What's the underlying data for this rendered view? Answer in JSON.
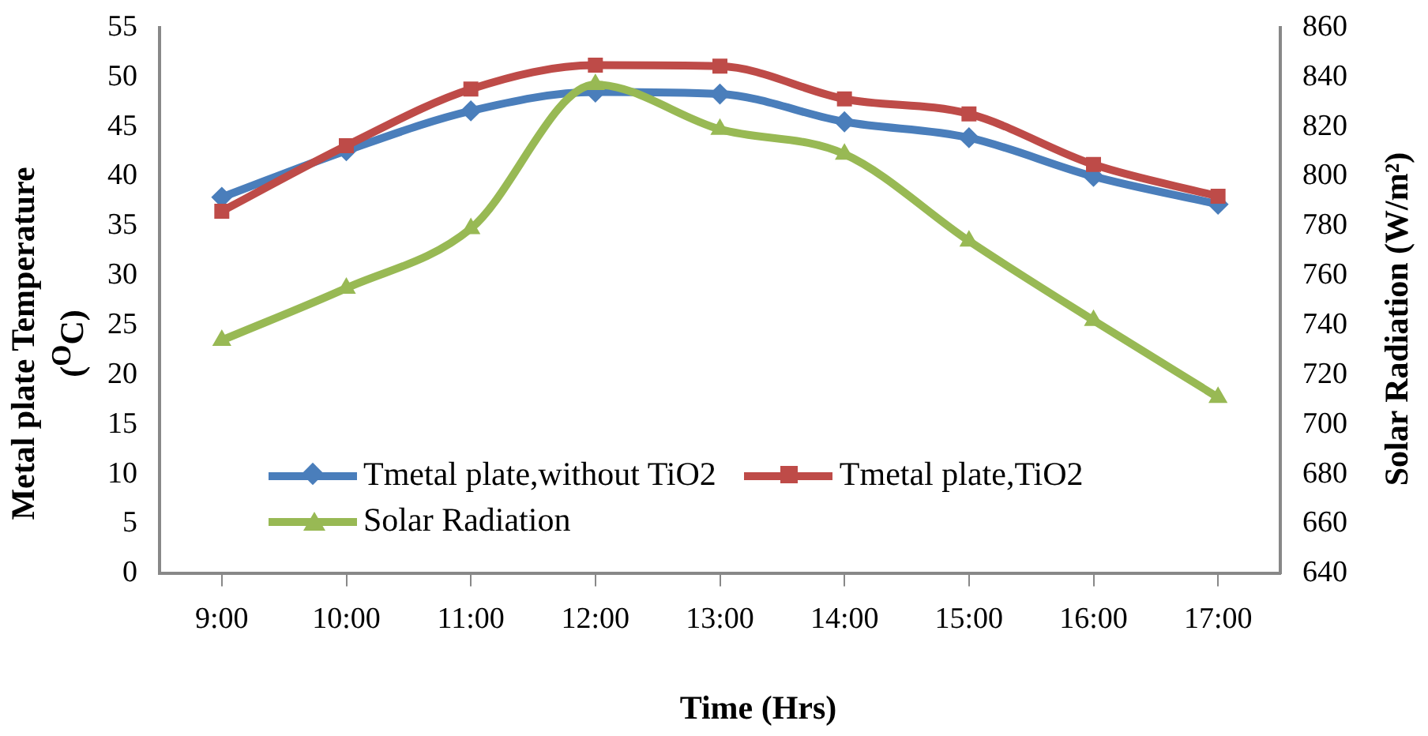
{
  "chart_data": {
    "type": "line",
    "xlabel": "Time (Hrs)",
    "ylabel": "Metal plate  Temperature ($^{O}$C)",
    "y2label": "Solar Radiation (W/m²)",
    "categories": [
      "9:00",
      "10:00",
      "11:00",
      "12:00",
      "13:00",
      "14:00",
      "15:00",
      "16:00",
      "17:00"
    ],
    "series": [
      {
        "name": "Tmetal plate,without TiO2",
        "color": "#4a7ebb",
        "marker": "diamond",
        "values": [
          37.9,
          42.6,
          46.6,
          48.5,
          48.3,
          45.5,
          43.9,
          40.0,
          37.2
        ]
      },
      {
        "name": "Tmetal plate,TiO2",
        "color": "#be4b48",
        "marker": "square",
        "values": [
          36.5,
          43.1,
          48.8,
          51.2,
          51.1,
          47.8,
          46.3,
          41.2,
          38.0
        ]
      },
      {
        "name": "Solar Radiation",
        "color": "#98b954",
        "marker": "triangle",
        "axis": "y2",
        "values": [
          734,
          755,
          779,
          837,
          819,
          809,
          774,
          742,
          711
        ]
      }
    ],
    "ylim": [
      0,
      55
    ],
    "yticks": [
      0,
      5,
      10,
      15,
      20,
      25,
      30,
      35,
      40,
      45,
      50,
      55
    ],
    "y2lim": [
      640,
      860
    ],
    "y2ticks": [
      640,
      660,
      680,
      700,
      720,
      740,
      760,
      780,
      800,
      820,
      840,
      860
    ],
    "grid": false,
    "legend": "bottom left"
  }
}
